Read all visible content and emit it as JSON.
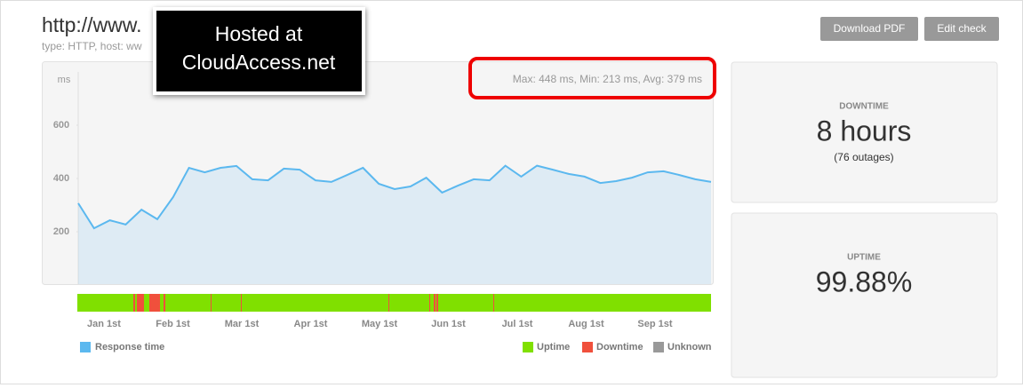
{
  "header": {
    "title": "http://www.",
    "subtitle": "type: HTTP, host: ww",
    "buttons": [
      "Download PDF",
      "Edit check"
    ]
  },
  "overlay": {
    "lines": [
      "Hosted at",
      "CloudAccess.net"
    ]
  },
  "chart_data": {
    "type": "area",
    "unit": "ms",
    "summary": "Max: 448 ms, Min: 213 ms, Avg: 379 ms",
    "values": [
      307,
      213,
      243,
      227,
      283,
      247,
      330,
      440,
      423,
      440,
      447,
      397,
      393,
      437,
      433,
      393,
      387,
      413,
      440,
      380,
      360,
      370,
      403,
      347,
      373,
      397,
      393,
      448,
      407,
      448,
      433,
      417,
      407,
      383,
      390,
      403,
      423,
      427,
      413,
      397,
      387
    ],
    "color": "#5bb8ef",
    "ylim": [
      0,
      800
    ],
    "yticks": [
      200,
      400,
      600
    ],
    "x_labels": [
      "Jan 1st",
      "Feb 1st",
      "Mar 1st",
      "Apr 1st",
      "May 1st",
      "Jun 1st",
      "Jul 1st",
      "Aug 1st",
      "Sep 1st"
    ],
    "legend": "Response time"
  },
  "status": {
    "legend": [
      {
        "name": "Uptime",
        "color": "#80e000"
      },
      {
        "name": "Downtime",
        "color": "#f0503c"
      },
      {
        "name": "Unknown",
        "color": "#999999"
      }
    ]
  },
  "stats": [
    {
      "label": "DOWNTIME",
      "value": "8 hours",
      "detail": "(76 outages)"
    },
    {
      "label": "UPTIME",
      "value": "99.88%"
    }
  ]
}
